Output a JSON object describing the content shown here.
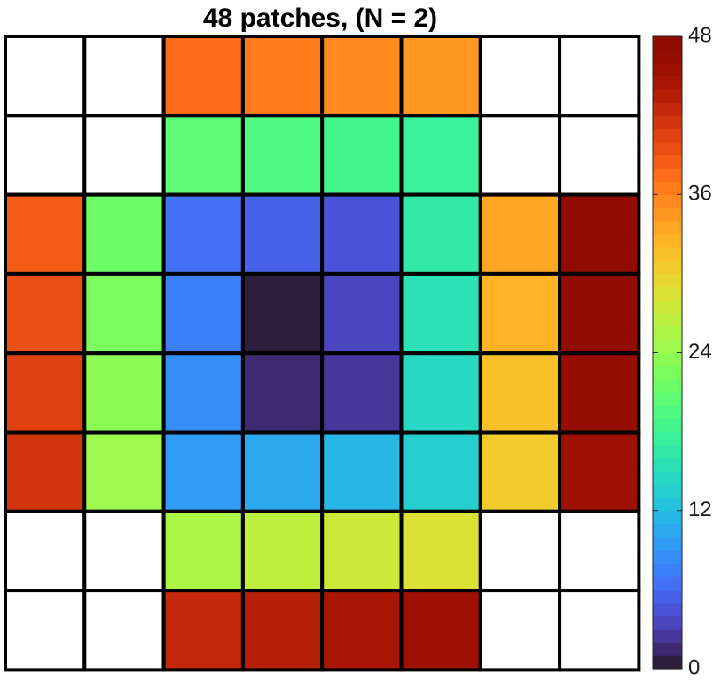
{
  "chart_data": {
    "type": "heatmap",
    "title": "48 patches, (N = 2)",
    "xlabel": "",
    "ylabel": "",
    "rows": 8,
    "cols": 8,
    "grid": true,
    "colormap": "turbo",
    "colorbar": {
      "location": "right",
      "min": 0,
      "max": 48,
      "levels": 48,
      "ticks": [
        0,
        12,
        24,
        36,
        48
      ],
      "tick_labels": [
        "0",
        "12",
        "24",
        "36",
        "48"
      ]
    },
    "empty_cell_color": "#ffffff",
    "values": [
      [
        null,
        null,
        37,
        36,
        35,
        34,
        null,
        null
      ],
      [
        null,
        null,
        20,
        19,
        18,
        17,
        null,
        null
      ],
      [
        38,
        21,
        6,
        5,
        4,
        16,
        33,
        48
      ],
      [
        39,
        22,
        7,
        0,
        3,
        15,
        32,
        47
      ],
      [
        40,
        23,
        8,
        1,
        2,
        14,
        31,
        46
      ],
      [
        41,
        24,
        9,
        10,
        11,
        13,
        30,
        45
      ],
      [
        null,
        null,
        25,
        26,
        27,
        28,
        null,
        null
      ],
      [
        null,
        null,
        42,
        43,
        44,
        45,
        null,
        null
      ]
    ]
  }
}
